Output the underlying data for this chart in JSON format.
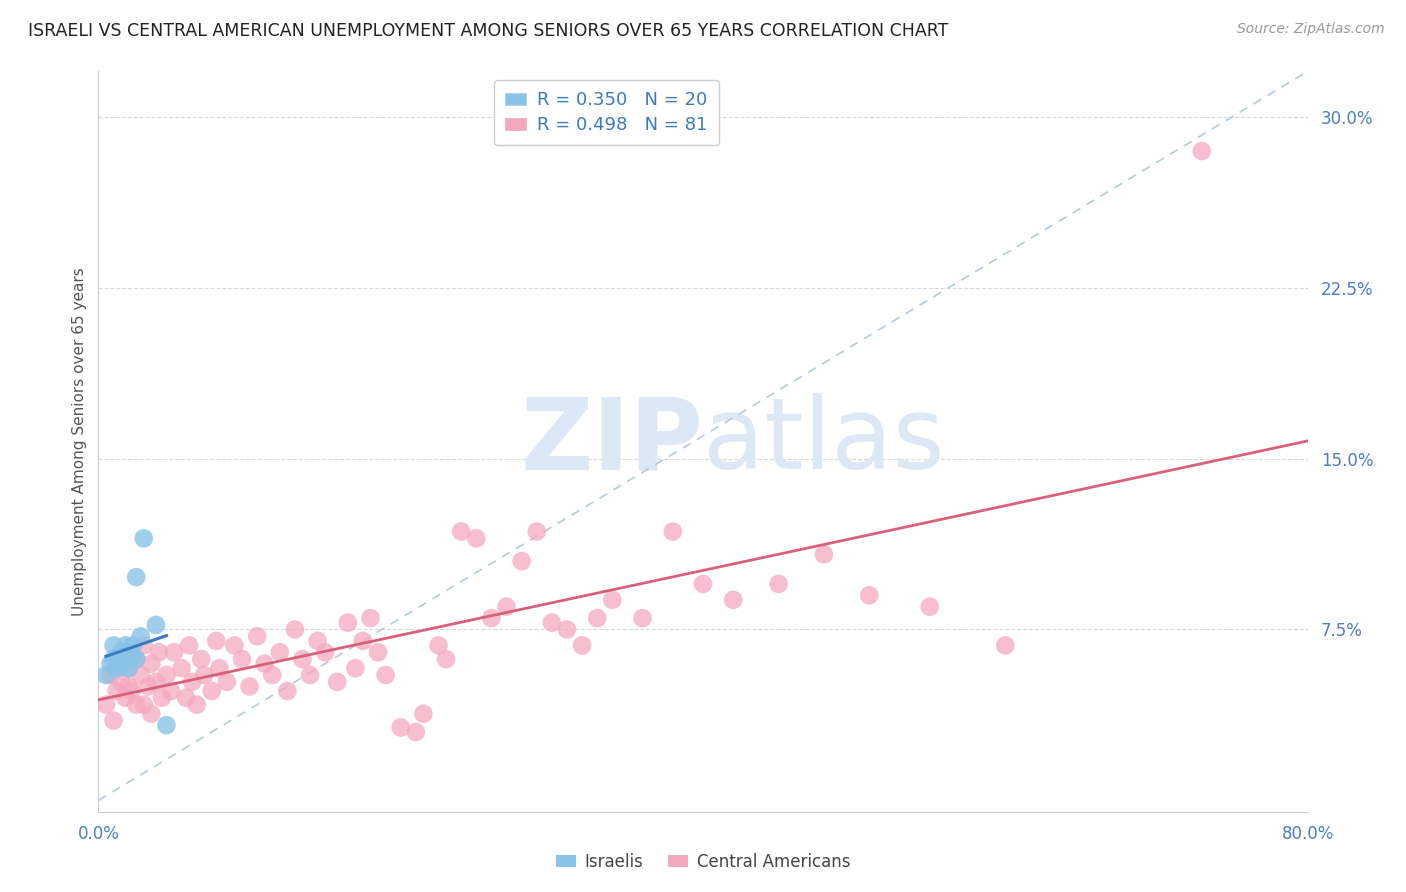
{
  "title": "ISRAELI VS CENTRAL AMERICAN UNEMPLOYMENT AMONG SENIORS OVER 65 YEARS CORRELATION CHART",
  "source": "Source: ZipAtlas.com",
  "ylabel": "Unemployment Among Seniors over 65 years",
  "xlim": [
    0.0,
    0.8
  ],
  "ylim": [
    -0.005,
    0.32
  ],
  "yticks": [
    0.075,
    0.15,
    0.225,
    0.3
  ],
  "ytick_labels": [
    "7.5%",
    "15.0%",
    "22.5%",
    "30.0%"
  ],
  "xticks": [
    0.0,
    0.1,
    0.2,
    0.3,
    0.4,
    0.5,
    0.6,
    0.7,
    0.8
  ],
  "xtick_labels": [
    "0.0%",
    "",
    "",
    "",
    "",
    "",
    "",
    "",
    "80.0%"
  ],
  "legend_label1": "R = 0.350   N = 20",
  "legend_label2": "R = 0.498   N = 81",
  "legend_color1": "#89c4e8",
  "legend_color2": "#f4a8c0",
  "watermark_zip": "ZIP",
  "watermark_atlas": "atlas",
  "watermark_color": "#dce8f5",
  "israeli_color": "#89c4e8",
  "central_color": "#f4a8c0",
  "trendline_israeli_color": "#3a7bbf",
  "trendline_central_color": "#d9607a",
  "trendline_reference_color": "#b0c8dc",
  "israeli_x": [
    0.005,
    0.008,
    0.01,
    0.01,
    0.012,
    0.013,
    0.015,
    0.015,
    0.017,
    0.018,
    0.02,
    0.02,
    0.022,
    0.023,
    0.025,
    0.025,
    0.028,
    0.03,
    0.038,
    0.045
  ],
  "israeli_y": [
    0.055,
    0.06,
    0.062,
    0.068,
    0.058,
    0.063,
    0.06,
    0.065,
    0.062,
    0.068,
    0.058,
    0.065,
    0.063,
    0.068,
    0.062,
    0.098,
    0.072,
    0.115,
    0.077,
    0.033
  ],
  "central_x": [
    0.005,
    0.008,
    0.01,
    0.012,
    0.015,
    0.015,
    0.018,
    0.02,
    0.02,
    0.022,
    0.025,
    0.025,
    0.028,
    0.03,
    0.03,
    0.033,
    0.035,
    0.035,
    0.038,
    0.04,
    0.042,
    0.045,
    0.048,
    0.05,
    0.055,
    0.058,
    0.06,
    0.062,
    0.065,
    0.068,
    0.07,
    0.075,
    0.078,
    0.08,
    0.085,
    0.09,
    0.095,
    0.1,
    0.105,
    0.11,
    0.115,
    0.12,
    0.125,
    0.13,
    0.135,
    0.14,
    0.145,
    0.15,
    0.158,
    0.165,
    0.17,
    0.175,
    0.18,
    0.185,
    0.19,
    0.2,
    0.21,
    0.215,
    0.225,
    0.23,
    0.24,
    0.25,
    0.26,
    0.27,
    0.28,
    0.29,
    0.3,
    0.31,
    0.32,
    0.33,
    0.34,
    0.36,
    0.38,
    0.4,
    0.42,
    0.45,
    0.48,
    0.51,
    0.55,
    0.6,
    0.73
  ],
  "central_y": [
    0.042,
    0.055,
    0.035,
    0.048,
    0.052,
    0.06,
    0.045,
    0.05,
    0.058,
    0.048,
    0.042,
    0.062,
    0.055,
    0.042,
    0.068,
    0.05,
    0.038,
    0.06,
    0.052,
    0.065,
    0.045,
    0.055,
    0.048,
    0.065,
    0.058,
    0.045,
    0.068,
    0.052,
    0.042,
    0.062,
    0.055,
    0.048,
    0.07,
    0.058,
    0.052,
    0.068,
    0.062,
    0.05,
    0.072,
    0.06,
    0.055,
    0.065,
    0.048,
    0.075,
    0.062,
    0.055,
    0.07,
    0.065,
    0.052,
    0.078,
    0.058,
    0.07,
    0.08,
    0.065,
    0.055,
    0.032,
    0.03,
    0.038,
    0.068,
    0.062,
    0.118,
    0.115,
    0.08,
    0.085,
    0.105,
    0.118,
    0.078,
    0.075,
    0.068,
    0.08,
    0.088,
    0.08,
    0.118,
    0.095,
    0.088,
    0.095,
    0.108,
    0.09,
    0.085,
    0.068,
    0.285
  ]
}
